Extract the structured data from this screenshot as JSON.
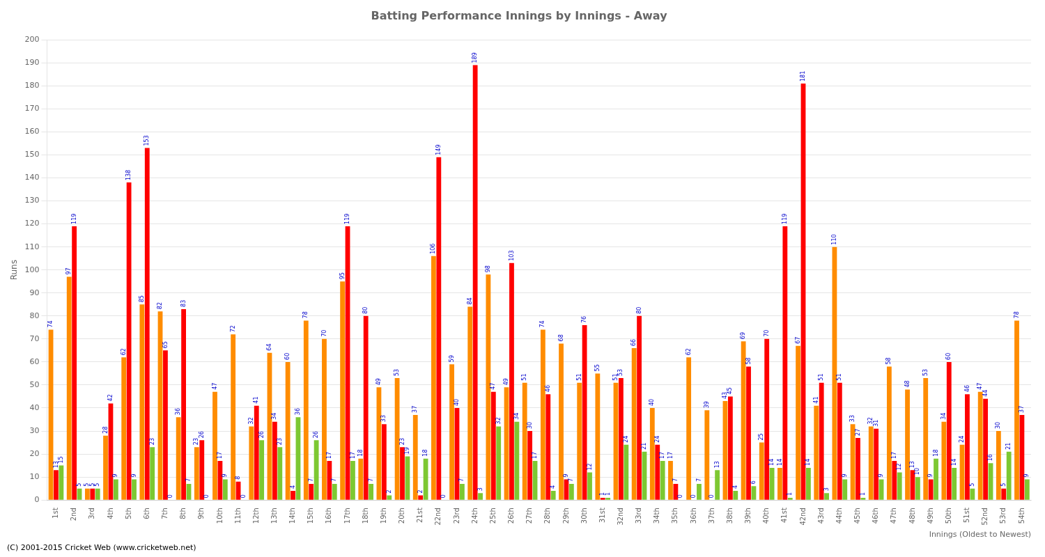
{
  "chart_data": {
    "type": "bar",
    "title": "Batting Performance Innings by Innings - Away",
    "ylabel": "Runs",
    "xlabel": "Innings (Oldest to Newest)",
    "annotations": [
      "(C) 2001-2015 Cricket Web (www.cricketweb.net)"
    ],
    "categories": [
      "1st",
      "2nd",
      "3rd",
      "4th",
      "5th",
      "6th",
      "7th",
      "8th",
      "9th",
      "10th",
      "11th",
      "12th",
      "13th",
      "14th",
      "15th",
      "16th",
      "17th",
      "18th",
      "19th",
      "20th",
      "21st",
      "22nd",
      "23rd",
      "24th",
      "25th",
      "26th",
      "27th",
      "28th",
      "29th",
      "30th",
      "31st",
      "32nd",
      "33rd",
      "34th",
      "35th",
      "36th",
      "37th",
      "38th",
      "39th",
      "40th",
      "41st",
      "42nd",
      "43rd",
      "44th",
      "45th",
      "46th",
      "47th",
      "48th",
      "49th",
      "50th",
      "51st",
      "52nd",
      "53rd",
      "54th"
    ],
    "series": [
      {
        "color": "#ff8c00",
        "values": [
          74,
          97,
          5,
          28,
          62,
          85,
          82,
          36,
          23,
          47,
          72,
          32,
          64,
          60,
          78,
          70,
          95,
          18,
          49,
          53,
          37,
          106,
          59,
          84,
          98,
          49,
          51,
          74,
          68,
          51,
          55,
          51,
          66,
          40,
          17,
          62,
          39,
          43,
          69,
          25,
          14,
          67,
          41,
          110,
          33,
          32,
          58,
          48,
          53,
          34,
          24,
          47,
          30,
          78
        ]
      },
      {
        "color": "#ff0000",
        "values": [
          13,
          119,
          5,
          42,
          138,
          153,
          65,
          83,
          26,
          17,
          8,
          41,
          34,
          4,
          7,
          17,
          119,
          80,
          33,
          23,
          2,
          149,
          40,
          189,
          47,
          103,
          30,
          46,
          9,
          76,
          1,
          53,
          80,
          24,
          7,
          0,
          0,
          45,
          58,
          70,
          119,
          181,
          51,
          51,
          27,
          31,
          17,
          13,
          9,
          60,
          46,
          44,
          5,
          37
        ]
      },
      {
        "color": "#7dc832",
        "values": [
          15,
          5,
          5,
          9,
          9,
          23,
          0,
          7,
          0,
          9,
          0,
          26,
          23,
          36,
          26,
          7,
          17,
          7,
          2,
          19,
          18,
          0,
          7,
          3,
          32,
          34,
          17,
          4,
          7,
          12,
          1,
          24,
          21,
          17,
          0,
          7,
          13,
          4,
          6,
          14,
          1,
          14,
          3,
          9,
          1,
          9,
          12,
          10,
          18,
          14,
          5,
          16,
          21,
          9
        ]
      }
    ],
    "ylim": [
      0,
      200
    ],
    "yticks": [
      0,
      10,
      20,
      30,
      40,
      50,
      60,
      70,
      80,
      90,
      100,
      110,
      120,
      130,
      140,
      150,
      160,
      170,
      180,
      190,
      200
    ],
    "grid": true,
    "data_labels": true
  }
}
